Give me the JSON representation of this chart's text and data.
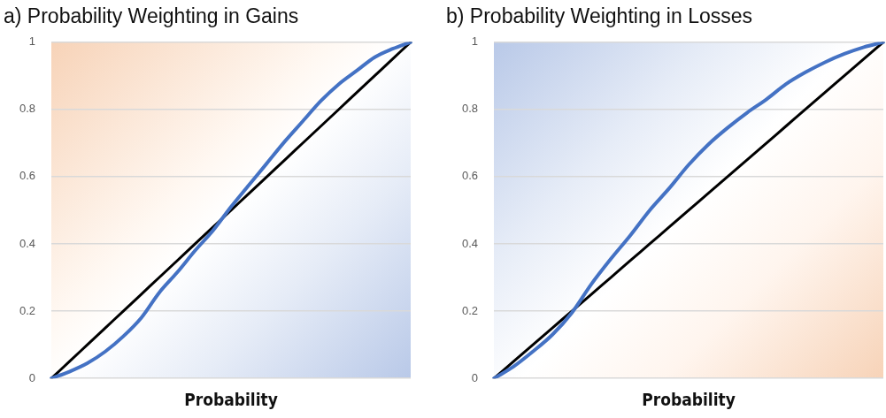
{
  "chart_data": [
    {
      "type": "line",
      "title": "a) Probability Weighting in Gains",
      "xlabel": "Probability",
      "categories": [
        null,
        null,
        null,
        null,
        null,
        null,
        null,
        null,
        null,
        null,
        null,
        null,
        null,
        null,
        null,
        null,
        null,
        null,
        null,
        null,
        null
      ],
      "series": [
        {
          "color": "#4472c4",
          "values": [
            0,
            0.02,
            0.045,
            0.08,
            0.125,
            0.18,
            0.255,
            0.315,
            0.38,
            0.44,
            0.51,
            0.575,
            0.64,
            0.705,
            0.765,
            0.825,
            0.875,
            0.915,
            0.955,
            0.98,
            1
          ]
        },
        {
          "color": "#000000",
          "values": [
            0,
            0.05,
            0.1,
            0.15,
            0.2,
            0.25,
            0.3,
            0.35,
            0.4,
            0.45,
            0.5,
            0.55,
            0.6,
            0.65,
            0.7,
            0.75,
            0.8,
            0.85,
            0.9,
            0.95,
            1
          ]
        }
      ],
      "ylim": [
        0,
        1
      ],
      "yticks": [
        0,
        0.2,
        0.4,
        0.6,
        0.8,
        1
      ],
      "grid": "y",
      "legend": false,
      "marker": "none",
      "line_style": "solid",
      "tick_labels": "y"
    },
    {
      "type": "line",
      "title": "b) Probability Weighting in Losses",
      "xlabel": "Probability",
      "categories": [
        null,
        null,
        null,
        null,
        null,
        null,
        null,
        null,
        null,
        null,
        null,
        null,
        null,
        null,
        null,
        null,
        null,
        null,
        null,
        null,
        null
      ],
      "series": [
        {
          "color": "#4472c4",
          "values": [
            0,
            0.035,
            0.08,
            0.13,
            0.195,
            0.28,
            0.355,
            0.425,
            0.5,
            0.565,
            0.635,
            0.695,
            0.745,
            0.79,
            0.83,
            0.875,
            0.91,
            0.94,
            0.965,
            0.985,
            1
          ]
        },
        {
          "color": "#000000",
          "values": [
            0,
            0.05,
            0.1,
            0.15,
            0.2,
            0.25,
            0.3,
            0.35,
            0.4,
            0.45,
            0.5,
            0.55,
            0.6,
            0.65,
            0.7,
            0.75,
            0.8,
            0.85,
            0.9,
            0.95,
            1
          ]
        }
      ],
      "ylim": [
        0,
        1
      ],
      "yticks": [
        0,
        0.2,
        0.4,
        0.6,
        0.8,
        1
      ],
      "grid": "y",
      "legend": false,
      "marker": "none",
      "line_style": "solid",
      "tick_labels": "y"
    }
  ]
}
